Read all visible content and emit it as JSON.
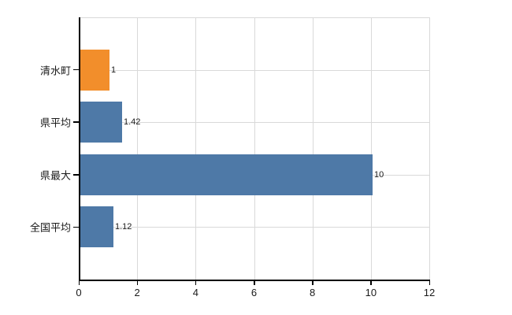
{
  "chart": {
    "background_color": "#ffffff",
    "grid_color": "#d9d9d9",
    "axis_color": "#000000",
    "text_color": "#1a1a1a"
  },
  "chart_data": {
    "type": "bar",
    "orientation": "horizontal",
    "title": "",
    "xlabel": "",
    "ylabel": "",
    "categories": [
      "清水町",
      "県平均",
      "県最大",
      "全国平均"
    ],
    "values": [
      1,
      1.42,
      10,
      1.12
    ],
    "value_labels": [
      "1",
      "1.42",
      "10",
      "1.12"
    ],
    "bar_colors": [
      "#F28E2B",
      "#4E79A7",
      "#4E79A7",
      "#4E79A7"
    ],
    "xlim": [
      0,
      12
    ],
    "x_ticks": [
      0,
      2,
      4,
      6,
      8,
      10,
      12
    ],
    "x_tick_labels": [
      "0",
      "2",
      "4",
      "6",
      "8",
      "10",
      "12"
    ],
    "grid": true,
    "legend": false
  }
}
